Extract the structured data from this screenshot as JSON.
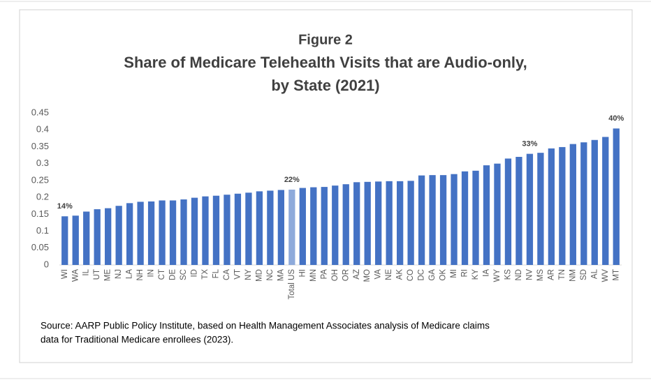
{
  "chart_data": {
    "type": "bar",
    "title": [
      "Figure 2",
      "Share of Medicare Telehealth Visits that are Audio-only,",
      "by State (2021)"
    ],
    "categories": [
      "WI",
      "WA",
      "IL",
      "UT",
      "ME",
      "NJ",
      "LA",
      "NH",
      "IN",
      "CT",
      "DE",
      "SC",
      "ID",
      "TX",
      "FL",
      "CA",
      "VT",
      "NY",
      "MD",
      "NC",
      "MA",
      "Total US",
      "HI",
      "MN",
      "PA",
      "OH",
      "OR",
      "AZ",
      "MO",
      "VA",
      "NE",
      "AK",
      "CO",
      "DC",
      "GA",
      "OK",
      "MI",
      "RI",
      "KY",
      "IA",
      "WY",
      "KS",
      "ND",
      "NV",
      "MS",
      "AR",
      "TN",
      "NM",
      "SD",
      "AL",
      "WV",
      "MT"
    ],
    "values": [
      0.144,
      0.146,
      0.158,
      0.165,
      0.168,
      0.175,
      0.183,
      0.187,
      0.188,
      0.191,
      0.191,
      0.194,
      0.199,
      0.203,
      0.205,
      0.208,
      0.211,
      0.214,
      0.218,
      0.22,
      0.222,
      0.223,
      0.228,
      0.23,
      0.231,
      0.235,
      0.239,
      0.245,
      0.246,
      0.247,
      0.248,
      0.248,
      0.249,
      0.265,
      0.266,
      0.266,
      0.269,
      0.277,
      0.279,
      0.295,
      0.3,
      0.315,
      0.32,
      0.329,
      0.332,
      0.345,
      0.349,
      0.358,
      0.363,
      0.37,
      0.379,
      0.404
    ],
    "value_labels": [
      "14%",
      null,
      null,
      null,
      null,
      null,
      null,
      null,
      null,
      null,
      null,
      null,
      null,
      null,
      null,
      null,
      null,
      null,
      null,
      null,
      null,
      "22%",
      null,
      null,
      null,
      null,
      null,
      null,
      null,
      null,
      null,
      null,
      null,
      null,
      null,
      null,
      null,
      null,
      null,
      null,
      null,
      null,
      null,
      "33%",
      null,
      null,
      null,
      null,
      null,
      null,
      null,
      "40%"
    ],
    "colors": [
      "#4472c4",
      "#4472c4",
      "#4472c4",
      "#4472c4",
      "#4472c4",
      "#4472c4",
      "#4472c4",
      "#4472c4",
      "#4472c4",
      "#4472c4",
      "#4472c4",
      "#4472c4",
      "#4472c4",
      "#4472c4",
      "#4472c4",
      "#4472c4",
      "#4472c4",
      "#4472c4",
      "#4472c4",
      "#4472c4",
      "#4472c4",
      "#8eaadb",
      "#4472c4",
      "#4472c4",
      "#4472c4",
      "#4472c4",
      "#4472c4",
      "#4472c4",
      "#4472c4",
      "#4472c4",
      "#4472c4",
      "#4472c4",
      "#4472c4",
      "#4472c4",
      "#4472c4",
      "#4472c4",
      "#4472c4",
      "#4472c4",
      "#4472c4",
      "#4472c4",
      "#4472c4",
      "#4472c4",
      "#4472c4",
      "#4472c4",
      "#4472c4",
      "#4472c4",
      "#4472c4",
      "#4472c4",
      "#4472c4",
      "#4472c4",
      "#4472c4",
      "#4472c4"
    ],
    "ylim": [
      0,
      0.45
    ],
    "yticks": [
      0,
      0.05,
      0.1,
      0.15,
      0.2,
      0.25,
      0.3,
      0.35,
      0.4,
      0.45
    ],
    "grid": false,
    "source": [
      "Source: AARP Public Policy Institute, based on Health Management Associates analysis of Medicare claims",
      "data for Traditional Medicare enrollees (2023)."
    ]
  }
}
